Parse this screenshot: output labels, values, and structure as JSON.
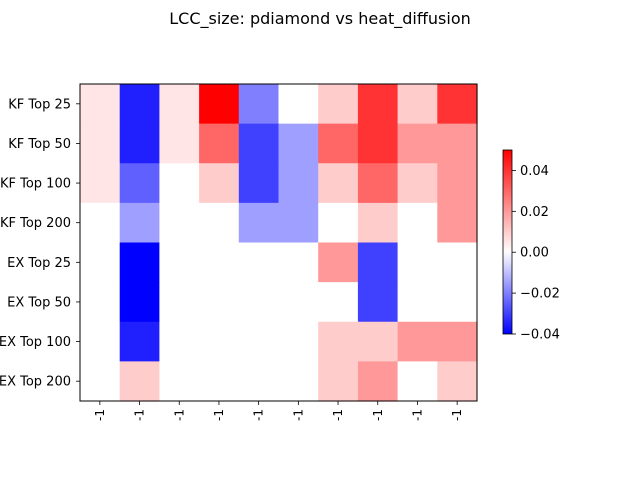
{
  "chart_data": {
    "type": "heatmap",
    "title": "LCC_size: pdiamond vs heat_diffusion",
    "row_labels": [
      "KF Top 25",
      "KF Top 50",
      "KF Top 100",
      "KF Top 200",
      "EX Top 25",
      "EX Top 50",
      "EX Top 100",
      "EX Top 200"
    ],
    "col_labels": [
      "-1",
      "-1",
      "-1",
      "-1",
      "-1",
      "-1",
      "-1",
      "-1",
      "-1",
      "-1"
    ],
    "values": [
      [
        0.005,
        -0.035,
        0.005,
        0.05,
        -0.02,
        0,
        0.01,
        0.04,
        0.01,
        0.04
      ],
      [
        0.005,
        -0.035,
        0.005,
        0.03,
        -0.03,
        -0.015,
        0.03,
        0.04,
        0.02,
        0.02
      ],
      [
        0.005,
        -0.025,
        0,
        0.01,
        -0.03,
        -0.015,
        0.01,
        0.03,
        0.01,
        0.02
      ],
      [
        0,
        -0.015,
        0,
        0,
        -0.015,
        -0.015,
        0,
        0.01,
        0,
        0.02
      ],
      [
        0,
        -0.04,
        0,
        0,
        0,
        0,
        0.02,
        -0.03,
        0,
        0
      ],
      [
        0,
        -0.04,
        0,
        0,
        0,
        0,
        0,
        -0.03,
        0,
        0
      ],
      [
        0,
        -0.035,
        0,
        0,
        0,
        0,
        0.01,
        0.01,
        0.02,
        0.02
      ],
      [
        0,
        0.01,
        0,
        0,
        0,
        0,
        0.01,
        0.02,
        0,
        0.01
      ]
    ],
    "colormap": "bwr",
    "colorbar": {
      "vmin": -0.04,
      "vmax": 0.05,
      "ticks": [
        -0.04,
        -0.02,
        0.0,
        0.02,
        0.04
      ],
      "tick_labels": [
        "−0.04",
        "−0.02",
        "0.00",
        "0.02",
        "0.04"
      ]
    }
  }
}
